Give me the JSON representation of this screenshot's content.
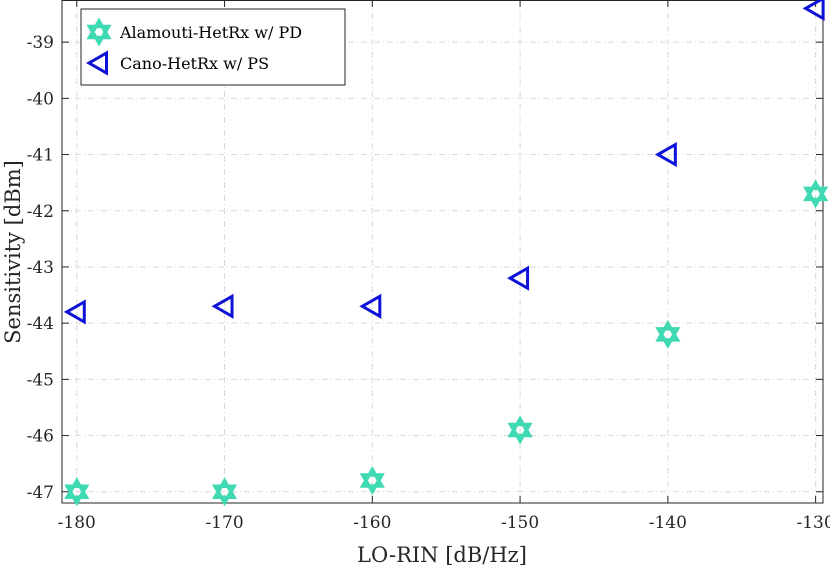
{
  "chart_data": {
    "type": "scatter",
    "title": "",
    "xlabel": "LO-RIN [dB/Hz]",
    "ylabel": "Sensitivity [dBm]",
    "xlim": [
      -181,
      -129.5
    ],
    "ylim": [
      -47.2,
      -38.25
    ],
    "xticks": [
      -180,
      -170,
      -160,
      -150,
      -140,
      -130
    ],
    "xtick_labels": [
      "-180",
      "-170",
      "-160",
      "-150",
      "-140",
      "-130"
    ],
    "yticks": [
      -47,
      -46,
      -45,
      -44,
      -43,
      -42,
      -41,
      -40,
      -39
    ],
    "ytick_labels": [
      "-47",
      "-46",
      "-45",
      "-44",
      "-43",
      "-42",
      "-41",
      "-40",
      "-39"
    ],
    "grid": true,
    "legend_position": "top-left",
    "series": [
      {
        "name": "Alamouti-HetRx w/ PD",
        "marker": "hexagram",
        "color": "#3fd9b2",
        "x": [
          -180,
          -170,
          -160,
          -150,
          -140,
          -130
        ],
        "y": [
          -47.0,
          -47.0,
          -46.8,
          -45.9,
          -44.2,
          -41.7
        ]
      },
      {
        "name": "Cano-HetRx w/ PS",
        "marker": "triangle-left",
        "color": "#0d12d8",
        "x": [
          -180,
          -170,
          -160,
          -150,
          -140,
          -130
        ],
        "y": [
          -43.8,
          -43.7,
          -43.7,
          -43.2,
          -41.0,
          -38.4
        ]
      }
    ]
  }
}
